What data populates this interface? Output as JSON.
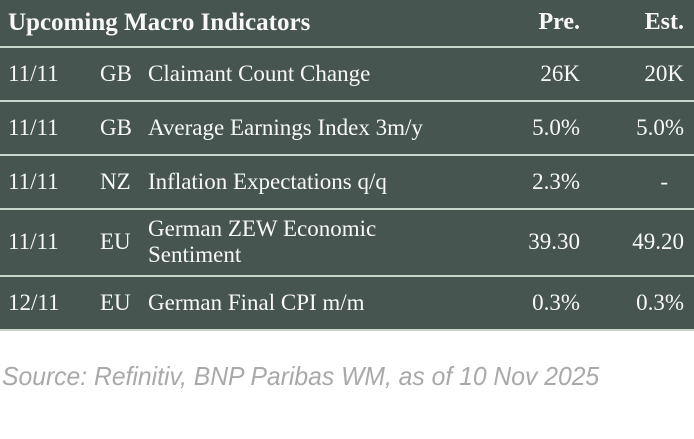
{
  "colors": {
    "table_bg": "#46554f",
    "divider": "#c9d6cc",
    "table_text": "#f7f8f7",
    "source_text": "#a9a9a9",
    "page_bg": "#ffffff"
  },
  "header": {
    "title": "Upcoming Macro Indicators",
    "col_previous": "Pre.",
    "col_estimate": "Est."
  },
  "table": {
    "rows": [
      {
        "date": "11/11",
        "country": "GB",
        "indicator": "Claimant Count Change",
        "pre": "26K",
        "est": "20K"
      },
      {
        "date": "11/11",
        "country": "GB",
        "indicator": "Average Earnings Index 3m/y",
        "pre": "5.0%",
        "est": "5.0%"
      },
      {
        "date": "11/11",
        "country": "NZ",
        "indicator": "Inflation Expectations q/q",
        "pre": "2.3%",
        "est": "-"
      },
      {
        "date": "11/11",
        "country": "EU",
        "indicator": "German ZEW Economic Sentiment",
        "pre": "39.30",
        "est": "49.20"
      },
      {
        "date": "12/11",
        "country": "EU",
        "indicator": "German Final CPI m/m",
        "pre": "0.3%",
        "est": "0.3%"
      }
    ]
  },
  "footer": {
    "source": "Source: Refinitiv, BNP Paribas WM, as of 10 Nov 2025"
  },
  "chart_data": {
    "type": "table",
    "title": "Upcoming Macro Indicators",
    "columns": [
      "",
      "",
      "",
      "Pre.",
      "Est."
    ],
    "rows": [
      [
        "11/11",
        "GB",
        "Claimant Count Change",
        "26K",
        "20K"
      ],
      [
        "11/11",
        "GB",
        "Average Earnings Index 3m/y",
        "5.0%",
        "5.0%"
      ],
      [
        "11/11",
        "NZ",
        "Inflation Expectations q/q",
        "2.3%",
        "-"
      ],
      [
        "11/11",
        "EU",
        "German ZEW Economic Sentiment",
        "39.30",
        "49.20"
      ],
      [
        "12/11",
        "EU",
        "German Final CPI m/m",
        "0.3%",
        "0.3%"
      ]
    ],
    "source": "Source: Refinitiv, BNP Paribas WM, as of 10 Nov 2025"
  }
}
